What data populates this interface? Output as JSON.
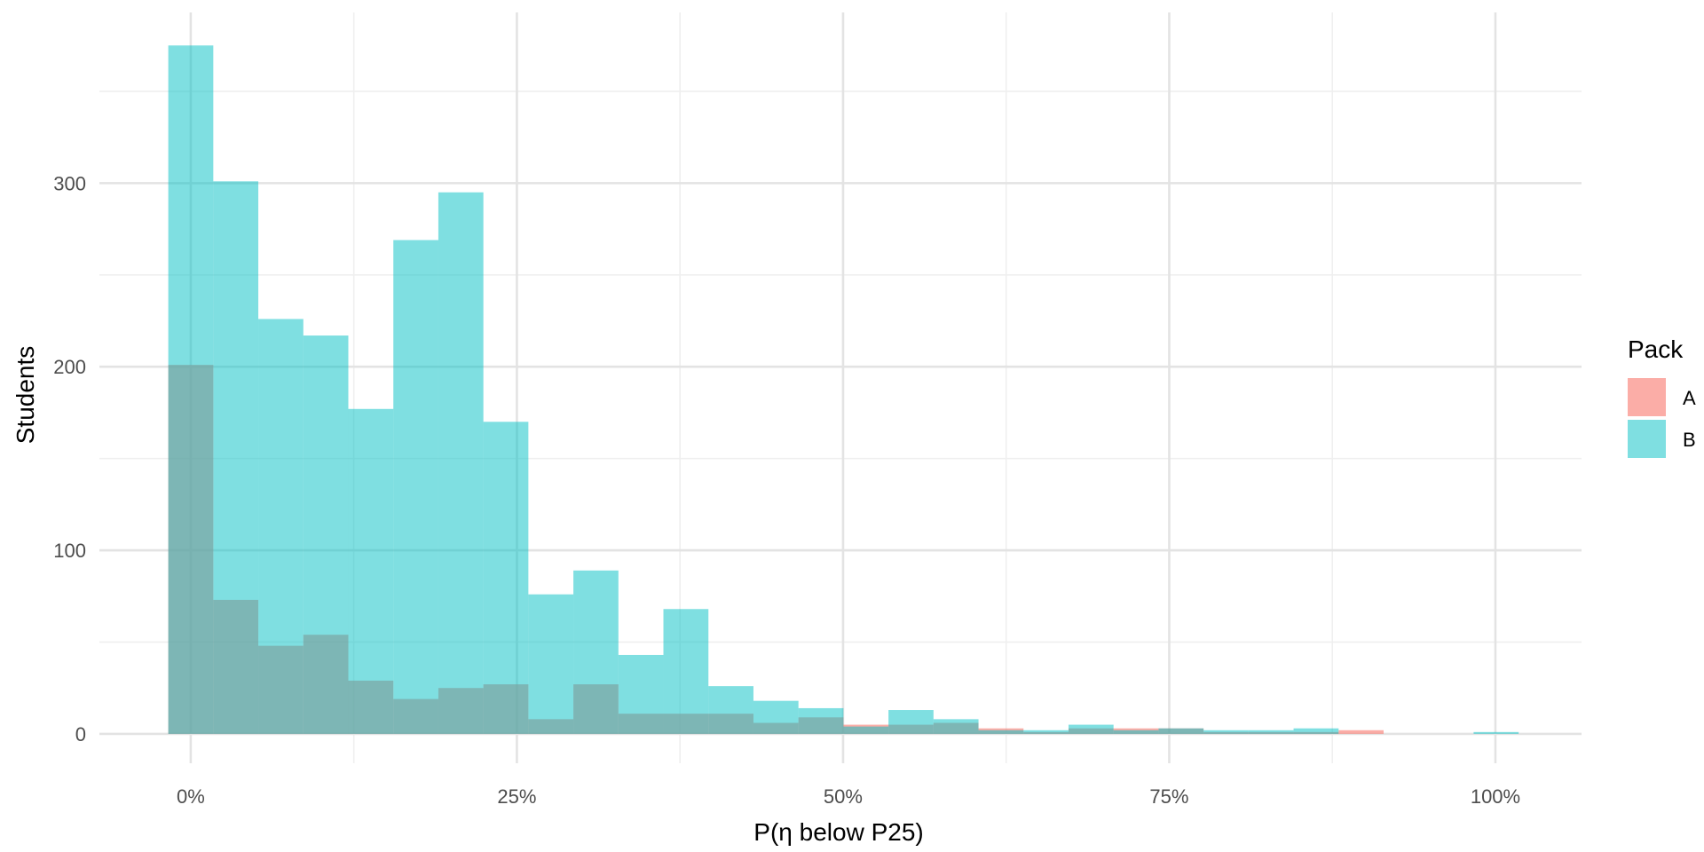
{
  "chart_data": {
    "type": "histogram",
    "title": "",
    "xlabel": "P(η below P25)",
    "ylabel": "Students",
    "xlim": [
      -0.07,
      1.066
    ],
    "ylim": [
      -16,
      393
    ],
    "x_major_ticks": [
      0,
      0.25,
      0.5,
      0.75,
      1.0
    ],
    "x_tick_labels": [
      "0%",
      "25%",
      "50%",
      "75%",
      "100%"
    ],
    "x_minor_ticks": [
      0.125,
      0.375,
      0.625,
      0.875
    ],
    "y_major_ticks": [
      0,
      100,
      200,
      300
    ],
    "y_tick_labels": [
      "0",
      "100",
      "200",
      "300"
    ],
    "y_minor_ticks": [
      50,
      150,
      250,
      350
    ],
    "bin_width": 0.0345,
    "bin_start": -0.0172,
    "grid": true,
    "legend": {
      "title": "Pack",
      "placement": "right",
      "entries": [
        "A",
        "B"
      ]
    },
    "series": [
      {
        "name": "A",
        "color": "#F8766D",
        "opacity": 0.6,
        "values": [
          201,
          73,
          48,
          54,
          29,
          19,
          25,
          27,
          8,
          27,
          11,
          11,
          11,
          6,
          9,
          5,
          5,
          6,
          3,
          1,
          3,
          3,
          3,
          1,
          1,
          1,
          2,
          0,
          0,
          0,
          0
        ]
      },
      {
        "name": "B",
        "color": "#00BFC4",
        "opacity": 0.5,
        "values": [
          375,
          301,
          226,
          217,
          177,
          269,
          295,
          170,
          76,
          89,
          43,
          68,
          26,
          18,
          14,
          4,
          13,
          8,
          2,
          2,
          5,
          2,
          3,
          2,
          2,
          3,
          0,
          0,
          0,
          1,
          0
        ]
      }
    ]
  }
}
